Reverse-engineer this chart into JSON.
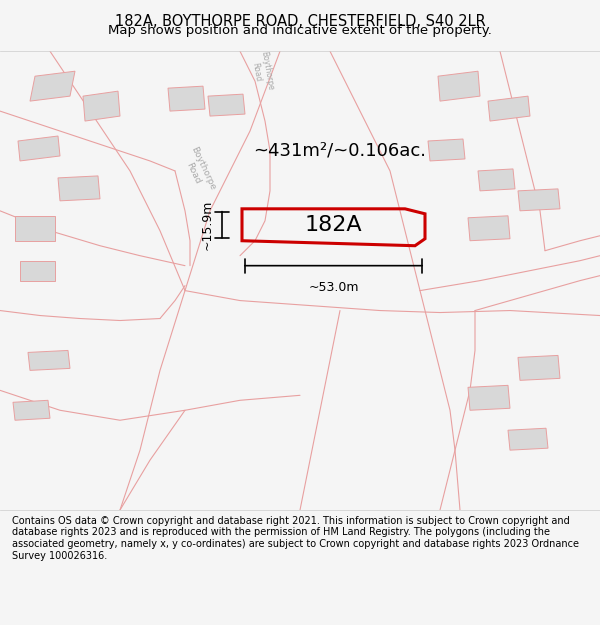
{
  "title_line1": "182A, BOYTHORPE ROAD, CHESTERFIELD, S40 2LR",
  "title_line2": "Map shows position and indicative extent of the property.",
  "footer_text": "Contains OS data © Crown copyright and database right 2021. This information is subject to Crown copyright and database rights 2023 and is reproduced with the permission of HM Land Registry. The polygons (including the associated geometry, namely x, y co-ordinates) are subject to Crown copyright and database rights 2023 Ordnance Survey 100026316.",
  "area_label": "~431m²/~0.106ac.",
  "label_182A": "182A",
  "dim_width": "~53.0m",
  "dim_height": "~15.9m",
  "bg_color": "#f5f5f5",
  "map_bg": "#ffffff",
  "road_color": "#e8a0a0",
  "building_color": "#d8d8d8",
  "property_color": "#cc0000",
  "title_bg": "#ffffff",
  "footer_bg": "#ffffff"
}
